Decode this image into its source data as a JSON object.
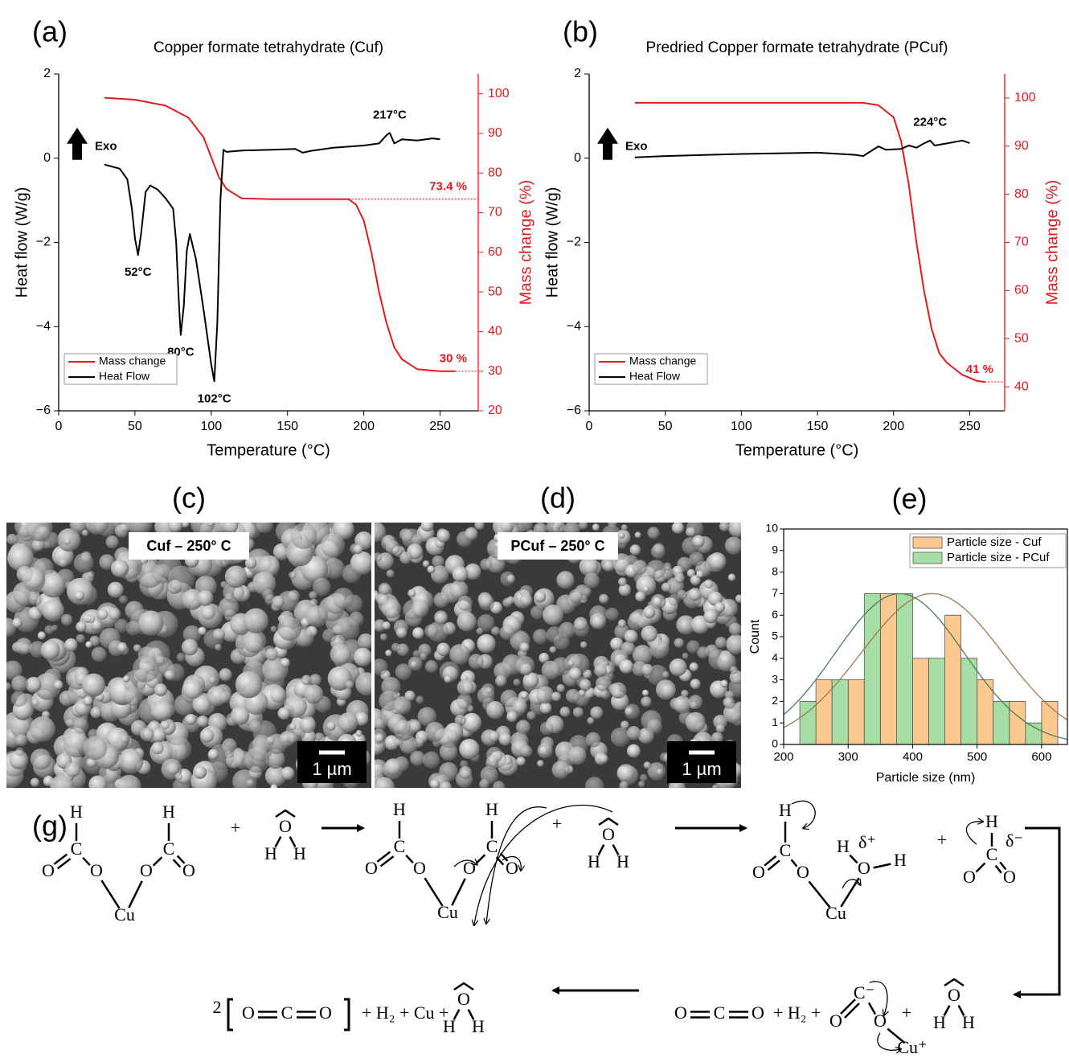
{
  "chart_data": [
    {
      "type": "line",
      "panel_label": "(a)",
      "title": "Copper formate tetrahydrate (Cuf)",
      "x_label": "Temperature (°C)",
      "y_label": "Heat flow (W/g)",
      "y2_label": "Mass change (%)",
      "xlim": [
        0,
        275
      ],
      "xticks": [
        0,
        50,
        100,
        150,
        200,
        250
      ],
      "ylim": [
        -6,
        2
      ],
      "yticks": [
        {
          "value": -6,
          "label": "−6"
        },
        {
          "value": -4,
          "label": "−4"
        },
        {
          "value": -2,
          "label": "−2"
        },
        0,
        2
      ],
      "y2lim": [
        20,
        105
      ],
      "y2ticks": [
        20,
        30,
        40,
        50,
        60,
        70,
        80,
        90,
        100
      ],
      "legend": "lower left",
      "marker_text": "Exo",
      "series": [
        {
          "name": "Mass change",
          "color": "#e31a1c",
          "axis": "y2",
          "x": [
            30,
            50,
            70,
            85,
            95,
            100,
            105,
            110,
            120,
            140,
            190,
            195,
            200,
            205,
            210,
            215,
            220,
            225,
            235,
            250,
            260
          ],
          "values": [
            99,
            98.5,
            97,
            94,
            89,
            84,
            79,
            76,
            73.6,
            73.4,
            73.4,
            72,
            68,
            60,
            50,
            42,
            36,
            33,
            30.5,
            30,
            30
          ]
        },
        {
          "name": "Heat Flow",
          "color": "#000000",
          "x": [
            30,
            40,
            45,
            48,
            50,
            52,
            54,
            57,
            60,
            65,
            70,
            75,
            77,
            79,
            80,
            82,
            84,
            86,
            90,
            95,
            100,
            102,
            104,
            106,
            108,
            110,
            120,
            140,
            155,
            160,
            165,
            180,
            200,
            210,
            215,
            217,
            220,
            225,
            235,
            245,
            250
          ],
          "values": [
            -0.15,
            -0.25,
            -0.5,
            -1.2,
            -1.9,
            -2.3,
            -1.8,
            -0.8,
            -0.65,
            -0.75,
            -0.95,
            -1.2,
            -2.0,
            -3.6,
            -4.2,
            -3.5,
            -2.2,
            -1.8,
            -2.4,
            -3.6,
            -4.9,
            -5.3,
            -3.9,
            -1.0,
            0.2,
            0.15,
            0.18,
            0.2,
            0.22,
            0.13,
            0.17,
            0.25,
            0.3,
            0.35,
            0.55,
            0.6,
            0.35,
            0.45,
            0.42,
            0.47,
            0.45
          ]
        }
      ],
      "annotations": [
        {
          "text": "52°C",
          "x": 52,
          "y": -2.3
        },
        {
          "text": "80°C",
          "x": 80,
          "y": -4.2
        },
        {
          "text": "102°C",
          "x": 102,
          "y": -5.3
        },
        {
          "text": "217°C",
          "x": 217,
          "y": 0.6
        }
      ],
      "y2_annotations": [
        {
          "text": "73.4 %",
          "value": 73.4
        },
        {
          "text": "30 %",
          "value": 30
        }
      ]
    },
    {
      "type": "line",
      "panel_label": "(b)",
      "title": "Predried Copper formate tetrahydrate (PCuf)",
      "x_label": "Temperature (°C)",
      "y_label": "Heat flow (W/g)",
      "y2_label": "Mass change (%)",
      "xlim": [
        0,
        273
      ],
      "xticks": [
        0,
        50,
        100,
        150,
        200,
        250
      ],
      "ylim": [
        -6,
        2
      ],
      "yticks": [
        {
          "value": -6,
          "label": "−6"
        },
        {
          "value": -4,
          "label": "−4"
        },
        {
          "value": -2,
          "label": "−2"
        },
        0,
        2
      ],
      "y2lim": [
        35,
        105
      ],
      "y2ticks": [
        40,
        50,
        60,
        70,
        80,
        90,
        100
      ],
      "legend": "lower left",
      "marker_text": "Exo",
      "series": [
        {
          "name": "Mass change",
          "color": "#e31a1c",
          "axis": "y2",
          "x": [
            30,
            180,
            190,
            200,
            205,
            210,
            215,
            220,
            225,
            230,
            235,
            245,
            255,
            260
          ],
          "values": [
            99,
            99,
            98.5,
            96,
            91,
            82,
            70,
            60,
            52,
            47,
            45,
            42.5,
            41.2,
            41
          ]
        },
        {
          "name": "Heat Flow",
          "color": "#000000",
          "x": [
            30,
            50,
            100,
            150,
            175,
            180,
            190,
            195,
            205,
            210,
            215,
            220,
            224,
            227,
            235,
            245,
            250
          ],
          "values": [
            0.02,
            0.05,
            0.1,
            0.13,
            0.08,
            0.05,
            0.28,
            0.2,
            0.22,
            0.3,
            0.25,
            0.35,
            0.42,
            0.3,
            0.35,
            0.42,
            0.36
          ]
        }
      ],
      "annotations": [
        {
          "text": "224°C",
          "x": 224,
          "y": 0.42
        }
      ],
      "y2_annotations": [
        {
          "text": "41 %",
          "value": 41
        }
      ]
    },
    {
      "type": "histogram",
      "panel_label": "(e)",
      "x_label": "Particle size (nm)",
      "y_label": "Count",
      "xlim": [
        200,
        640
      ],
      "xticks": [
        200,
        300,
        400,
        500,
        600
      ],
      "ylim": [
        0,
        10
      ],
      "yticks": [
        0,
        1,
        2,
        3,
        4,
        5,
        6,
        7,
        8,
        9,
        10
      ],
      "legend": "upper right",
      "series": [
        {
          "name": "Particle size - Cuf",
          "color": "#fbc98f",
          "fit_color": "#9c7a4e",
          "bins": [
            250,
            300,
            350,
            400,
            450,
            500,
            550,
            600,
            650
          ],
          "values": [
            3,
            3,
            7,
            4,
            6,
            3,
            2,
            2
          ],
          "fit": {
            "mean": 430,
            "sd": 110,
            "peak": 7
          }
        },
        {
          "name": "Particle size - PCuf",
          "color": "#a6dea4",
          "fit_color": "#4f7a5a",
          "bins": [
            225,
            275,
            325,
            375,
            425,
            475,
            525,
            575,
            625
          ],
          "values": [
            2,
            3,
            7,
            7,
            4,
            4,
            2,
            1
          ],
          "fit": {
            "mean": 380,
            "sd": 100,
            "peak": 7
          }
        }
      ]
    }
  ],
  "images": [
    {
      "panel_label": "(c)",
      "caption": "Cuf – 250° C",
      "scale_bar": "1 µm"
    },
    {
      "panel_label": "(d)",
      "caption": "PCuf – 250° C",
      "scale_bar": "1 µm"
    }
  ],
  "scheme": {
    "label": "(g)",
    "items": [
      {
        "atoms": [
          "H",
          "C",
          "O",
          "O",
          "H",
          "C",
          "O",
          "O",
          "Cu"
        ]
      },
      {
        "text": "+"
      },
      {
        "atoms": [
          "O",
          "H",
          "H"
        ]
      },
      {
        "atoms": [
          "H",
          "C",
          "O",
          "O",
          "H",
          "C",
          "O",
          "O",
          "Cu"
        ]
      },
      {
        "text": "+"
      },
      {
        "atoms": [
          "O",
          "H",
          "H"
        ]
      },
      {
        "atoms": [
          "H",
          "C",
          "O",
          "O",
          "H",
          "O",
          "H",
          "δ⁺",
          "Cu"
        ]
      },
      {
        "text": "+"
      },
      {
        "atoms": [
          "H",
          "C",
          "O",
          "O",
          "δ⁻"
        ]
      },
      {
        "text": "2"
      },
      {
        "atoms": [
          "O",
          "C",
          "O"
        ]
      },
      {
        "text": "+ H₂ + Cu +"
      },
      {
        "atoms": [
          "O",
          "H",
          "H"
        ]
      },
      {
        "atoms": [
          "O",
          "C",
          "O"
        ]
      },
      {
        "text": "+ H₂  +"
      },
      {
        "atoms": [
          "C⁻",
          "O",
          "O",
          "Cu⁺"
        ]
      },
      {
        "text": "+"
      },
      {
        "atoms": [
          "O",
          "H",
          "H"
        ]
      }
    ]
  }
}
